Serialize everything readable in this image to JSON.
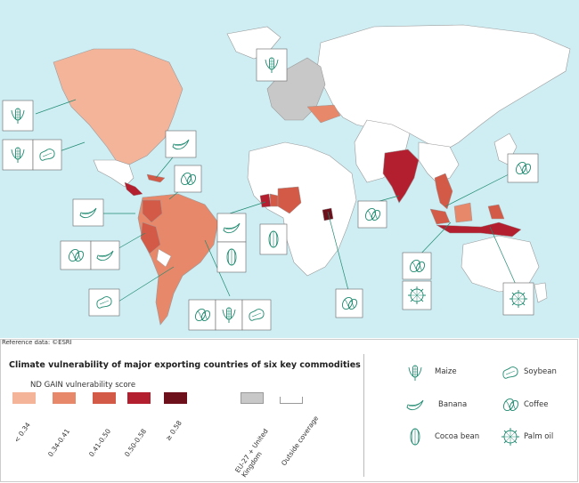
{
  "credit": "Reference data: ©ESRI",
  "legend": {
    "title": "Climate vulnerability of major exporting countries of six key commodities",
    "subtitle": "ND GAIN vulnerability score",
    "classes": [
      {
        "label": "< 0.34",
        "color": "#f4b49a"
      },
      {
        "label": "0.34-0.41",
        "color": "#e8886a"
      },
      {
        "label": "0.41-0.50",
        "color": "#d45a48"
      },
      {
        "label": "0.50-0.58",
        "color": "#b31f2e"
      },
      {
        "label": "≥ 0.58",
        "color": "#6e0f1c"
      }
    ],
    "other": [
      {
        "label": "EU-27 + United Kingdom",
        "color": "#c8c8c8"
      },
      {
        "label": "Outside coverage",
        "color": "#ffffff"
      }
    ],
    "commodities": [
      {
        "label": "Maize",
        "icon": "maize-icon"
      },
      {
        "label": "Soybean",
        "icon": "soybean-icon"
      },
      {
        "label": "Banana",
        "icon": "banana-icon"
      },
      {
        "label": "Coffee",
        "icon": "coffee-icon"
      },
      {
        "label": "Cocoa bean",
        "icon": "cocoa-bean-icon"
      },
      {
        "label": "Palm oil",
        "icon": "palm-oil-icon"
      }
    ]
  },
  "colors": {
    "ocean": "#cfeef4",
    "land_other": "#ffffff",
    "eu_uk": "#c8c8c8",
    "icon_stroke": "#1f8a70",
    "leader_line": "#1f8a70"
  }
}
